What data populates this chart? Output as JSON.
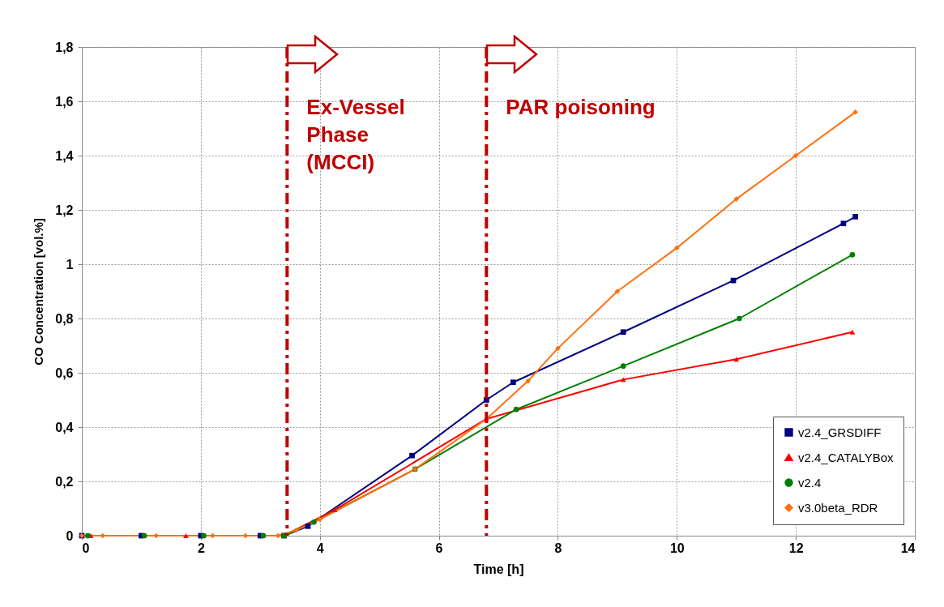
{
  "chart_data": {
    "type": "line",
    "xlabel": "Time [h]",
    "ylabel": "CO Concentration [vol.%]",
    "xlim": [
      0,
      14
    ],
    "xticks": [
      0,
      2,
      4,
      6,
      8,
      10,
      12,
      14
    ],
    "ylim": [
      0,
      1.8
    ],
    "yticks": [
      0,
      {
        "value": 0.2,
        "label": "0,2"
      },
      {
        "value": 0.4,
        "label": "0,4"
      },
      {
        "value": 0.6,
        "label": "0,6"
      },
      {
        "value": 0.8,
        "label": "0,8"
      },
      1,
      {
        "value": 1.2,
        "label": "1,2"
      },
      {
        "value": 1.4,
        "label": "1,4"
      },
      {
        "value": 1.6,
        "label": "1,6"
      },
      {
        "value": 1.8,
        "label": "1,8"
      }
    ],
    "grid": true,
    "legend": "bottom right",
    "line_style": "solid",
    "series": [
      {
        "name": "v2.4_GRSDIFF",
        "color": "#000080",
        "marker": "square",
        "x": [
          0,
          1,
          2,
          3,
          3.4,
          3.8,
          5.55,
          6.8,
          7.25,
          9.1,
          10.95,
          12.8,
          13
        ],
        "values": [
          0,
          0,
          0,
          0,
          0,
          0.035,
          0.295,
          0.5,
          0.565,
          0.75,
          0.94,
          1.15,
          1.175
        ]
      },
      {
        "name": "v2.4_CATALYBox",
        "color": "#ff0000",
        "marker": "triangle",
        "x": [
          0.15,
          1.75,
          3.4,
          4.25,
          6.8,
          9.1,
          11,
          12.95
        ],
        "values": [
          0,
          0,
          0,
          0.095,
          0.43,
          0.575,
          0.65,
          0.75
        ]
      },
      {
        "name": "v2.4",
        "color": "#008000",
        "marker": "circle",
        "x": [
          0.1,
          1.05,
          2.05,
          3.05,
          3.4,
          3.9,
          5.6,
          7.3,
          9.1,
          11.05,
          12.95
        ],
        "values": [
          0,
          0,
          0,
          0,
          0,
          0.05,
          0.245,
          0.465,
          0.625,
          0.8,
          1.035
        ]
      },
      {
        "name": "v3.0beta_RDR",
        "color": "#ff7010",
        "marker": "diamond",
        "x": [
          0,
          0.35,
          1.25,
          2.2,
          2.75,
          3.3,
          3.6,
          4,
          5.6,
          6.8,
          7.5,
          8,
          9,
          10,
          11,
          12,
          13
        ],
        "values": [
          0,
          0,
          0,
          0,
          0,
          0,
          0.02,
          0.06,
          0.245,
          0.43,
          0.57,
          0.69,
          0.9,
          1.06,
          1.24,
          1.4,
          1.56
        ]
      }
    ],
    "ref_lines": [
      {
        "axis": "x",
        "value": 3.45,
        "label": "Ex-Vessel\nPhase\n(MCCI)",
        "color": "#c00000",
        "line_style": "dashdot"
      },
      {
        "axis": "x",
        "value": 6.8,
        "label": "PAR poisoning",
        "color": "#c00000",
        "line_style": "dashdot"
      }
    ]
  }
}
